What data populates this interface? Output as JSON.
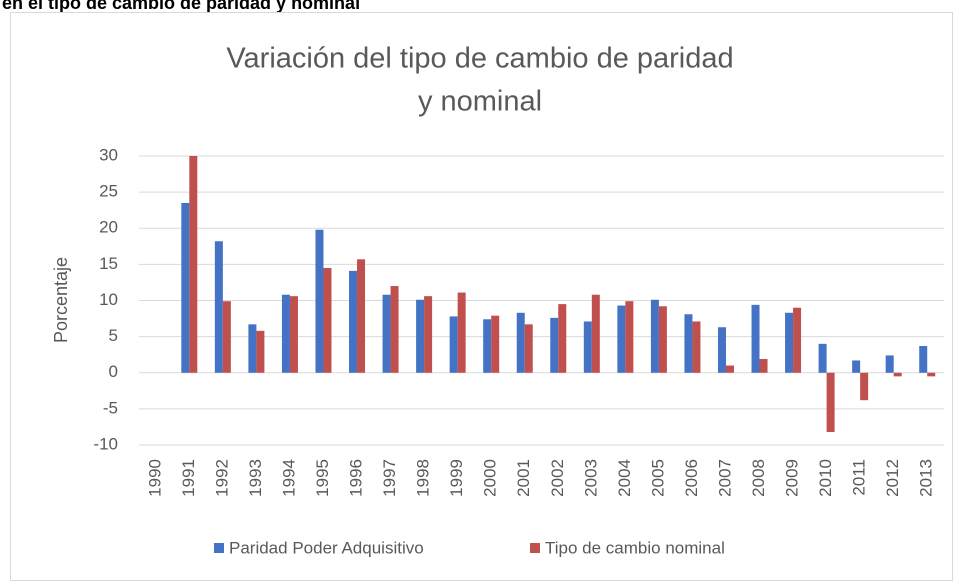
{
  "header_text": "en el tipo de cambio de paridad y nominal",
  "chart_data": {
    "type": "bar",
    "title": [
      "Variación del tipo de cambio de paridad",
      "y nominal"
    ],
    "y_label": "Porcentaje",
    "categories": [
      "1990",
      "1991",
      "1992",
      "1993",
      "1994",
      "1995",
      "1996",
      "1997",
      "1998",
      "1999",
      "2000",
      "2001",
      "2002",
      "2003",
      "2004",
      "2005",
      "2006",
      "2007",
      "2008",
      "2009",
      "2010",
      "2011",
      "2012",
      "2013"
    ],
    "series": [
      {
        "name": "Paridad Poder Adquisitivo",
        "color": "#4472c4",
        "values": [
          null,
          23.5,
          18.2,
          6.7,
          10.8,
          19.8,
          14.1,
          10.8,
          10.1,
          7.8,
          7.4,
          8.3,
          7.6,
          7.1,
          9.3,
          10.1,
          8.1,
          6.3,
          9.4,
          8.3,
          4.0,
          1.7,
          2.4,
          3.7
        ]
      },
      {
        "name": "Tipo de cambio nominal",
        "color": "#c0504d",
        "values": [
          null,
          30,
          9.9,
          5.8,
          10.6,
          14.5,
          15.7,
          12,
          10.6,
          11.1,
          7.9,
          6.7,
          9.5,
          10.8,
          9.9,
          9.2,
          7.1,
          1.0,
          1.9,
          9.0,
          -8.2,
          -3.8,
          -0.5,
          -0.5
        ]
      }
    ],
    "ylim": [
      -10,
      30
    ],
    "yticks": [
      -10,
      -5,
      0,
      5,
      10,
      15,
      20,
      25,
      30
    ],
    "grid": true,
    "legend": "bottom"
  }
}
